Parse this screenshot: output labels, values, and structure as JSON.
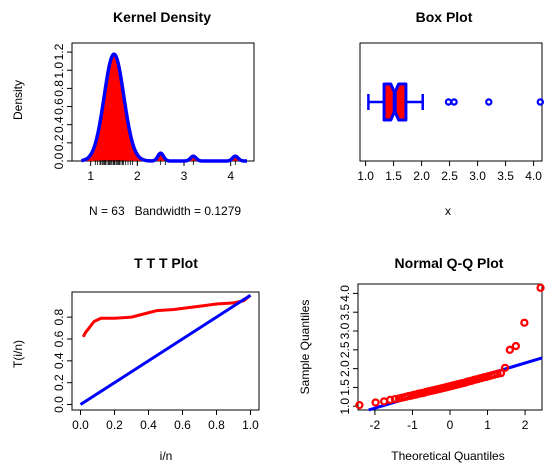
{
  "chart_data": [
    {
      "type": "area",
      "title": "Kernel Density",
      "ylabel": "Density",
      "xlabel": "N = 63   Bandwidth = 0.1279",
      "xlim": [
        0.6,
        4.5
      ],
      "ylim": [
        0,
        1.3
      ],
      "x_ticks": [
        "1",
        "2",
        "3",
        "4"
      ],
      "y_ticks": [
        "0.0",
        "0.2",
        "0.4",
        "0.6",
        "0.8",
        "1.0",
        "1.2"
      ],
      "colors": {
        "fill": "#ff0000",
        "line": "#0000ff"
      },
      "components": [
        {
          "mu": 1.5,
          "sd": 0.21,
          "w": 0.62
        },
        {
          "mu": 2.5,
          "sd": 0.06,
          "w": 0.013
        },
        {
          "mu": 3.2,
          "sd": 0.06,
          "w": 0.008
        },
        {
          "mu": 4.1,
          "sd": 0.06,
          "w": 0.008
        }
      ],
      "rug": [
        1.1,
        1.15,
        1.2,
        1.22,
        1.25,
        1.28,
        1.3,
        1.32,
        1.35,
        1.38,
        1.4,
        1.42,
        1.45,
        1.48,
        1.5,
        1.52,
        1.55,
        1.58,
        1.6,
        1.62,
        1.65,
        1.68,
        1.7,
        1.75,
        1.8,
        1.85,
        1.9,
        2.0,
        2.5,
        2.6,
        3.2,
        4.1
      ]
    },
    {
      "type": "box",
      "title": "Box Plot",
      "xlabel": "x",
      "xlim": [
        0.9,
        4.15
      ],
      "x_ticks": [
        "1.0",
        "1.5",
        "2.0",
        "2.5",
        "3.0",
        "3.5",
        "4.0"
      ],
      "whisker_low": 1.05,
      "q1": 1.33,
      "median": 1.52,
      "q3": 1.72,
      "whisker_high": 2.02,
      "notch": [
        1.45,
        1.59
      ],
      "outliers": [
        2.48,
        2.58,
        3.2,
        4.12
      ],
      "colors": {
        "box": "#ff0000",
        "border": "#0000ff"
      }
    },
    {
      "type": "line",
      "title": "T T T Plot",
      "xlabel": "i/n",
      "ylabel": "T(i/n)",
      "xlim": [
        -0.05,
        1.05
      ],
      "ylim": [
        -0.05,
        1.03
      ],
      "x_ticks": [
        "0.0",
        "0.2",
        "0.4",
        "0.6",
        "0.8",
        "1.0"
      ],
      "y_ticks": [
        "0.0",
        "0.2",
        "0.4",
        "0.6",
        "0.8"
      ],
      "series": [
        {
          "color": "#ff0000",
          "x": [
            0.016,
            0.03,
            0.05,
            0.08,
            0.12,
            0.2,
            0.3,
            0.4,
            0.45,
            0.55,
            0.6,
            0.7,
            0.8,
            0.9,
            0.96,
            1.0
          ],
          "y": [
            0.62,
            0.66,
            0.7,
            0.76,
            0.79,
            0.79,
            0.8,
            0.84,
            0.86,
            0.87,
            0.88,
            0.9,
            0.92,
            0.93,
            0.95,
            1.0
          ]
        },
        {
          "color": "#0000ff",
          "x": [
            0,
            1
          ],
          "y": [
            0,
            1
          ]
        }
      ]
    },
    {
      "type": "scatter",
      "title": "Normal Q-Q Plot",
      "xlabel": "Theoretical Quantiles",
      "ylabel": "Sample Quantiles",
      "xlim": [
        -2.45,
        2.45
      ],
      "ylim": [
        0.9,
        4.25
      ],
      "x_ticks": [
        "-2",
        "-1",
        "0",
        "1",
        "2"
      ],
      "y_ticks": [
        "1.0",
        "1.5",
        "2.0",
        "2.5",
        "3.0",
        "3.5",
        "4.0"
      ],
      "n": 63,
      "sample": [
        1.03,
        1.1,
        1.13,
        1.17,
        1.19,
        1.21,
        1.23,
        1.25,
        1.27,
        1.28,
        1.3,
        1.31,
        1.33,
        1.34,
        1.35,
        1.36,
        1.38,
        1.39,
        1.4,
        1.41,
        1.42,
        1.43,
        1.44,
        1.45,
        1.46,
        1.47,
        1.48,
        1.49,
        1.5,
        1.51,
        1.52,
        1.53,
        1.54,
        1.55,
        1.56,
        1.57,
        1.58,
        1.59,
        1.6,
        1.61,
        1.62,
        1.63,
        1.65,
        1.66,
        1.67,
        1.68,
        1.7,
        1.71,
        1.72,
        1.74,
        1.75,
        1.77,
        1.78,
        1.8,
        1.82,
        1.84,
        1.86,
        1.88,
        2.02,
        2.5,
        2.6,
        3.22,
        4.15
      ],
      "ref_line": {
        "intercept": 1.55,
        "slope": 0.3
      },
      "colors": {
        "points": "#ff0000",
        "line": "#0000ff"
      }
    }
  ]
}
